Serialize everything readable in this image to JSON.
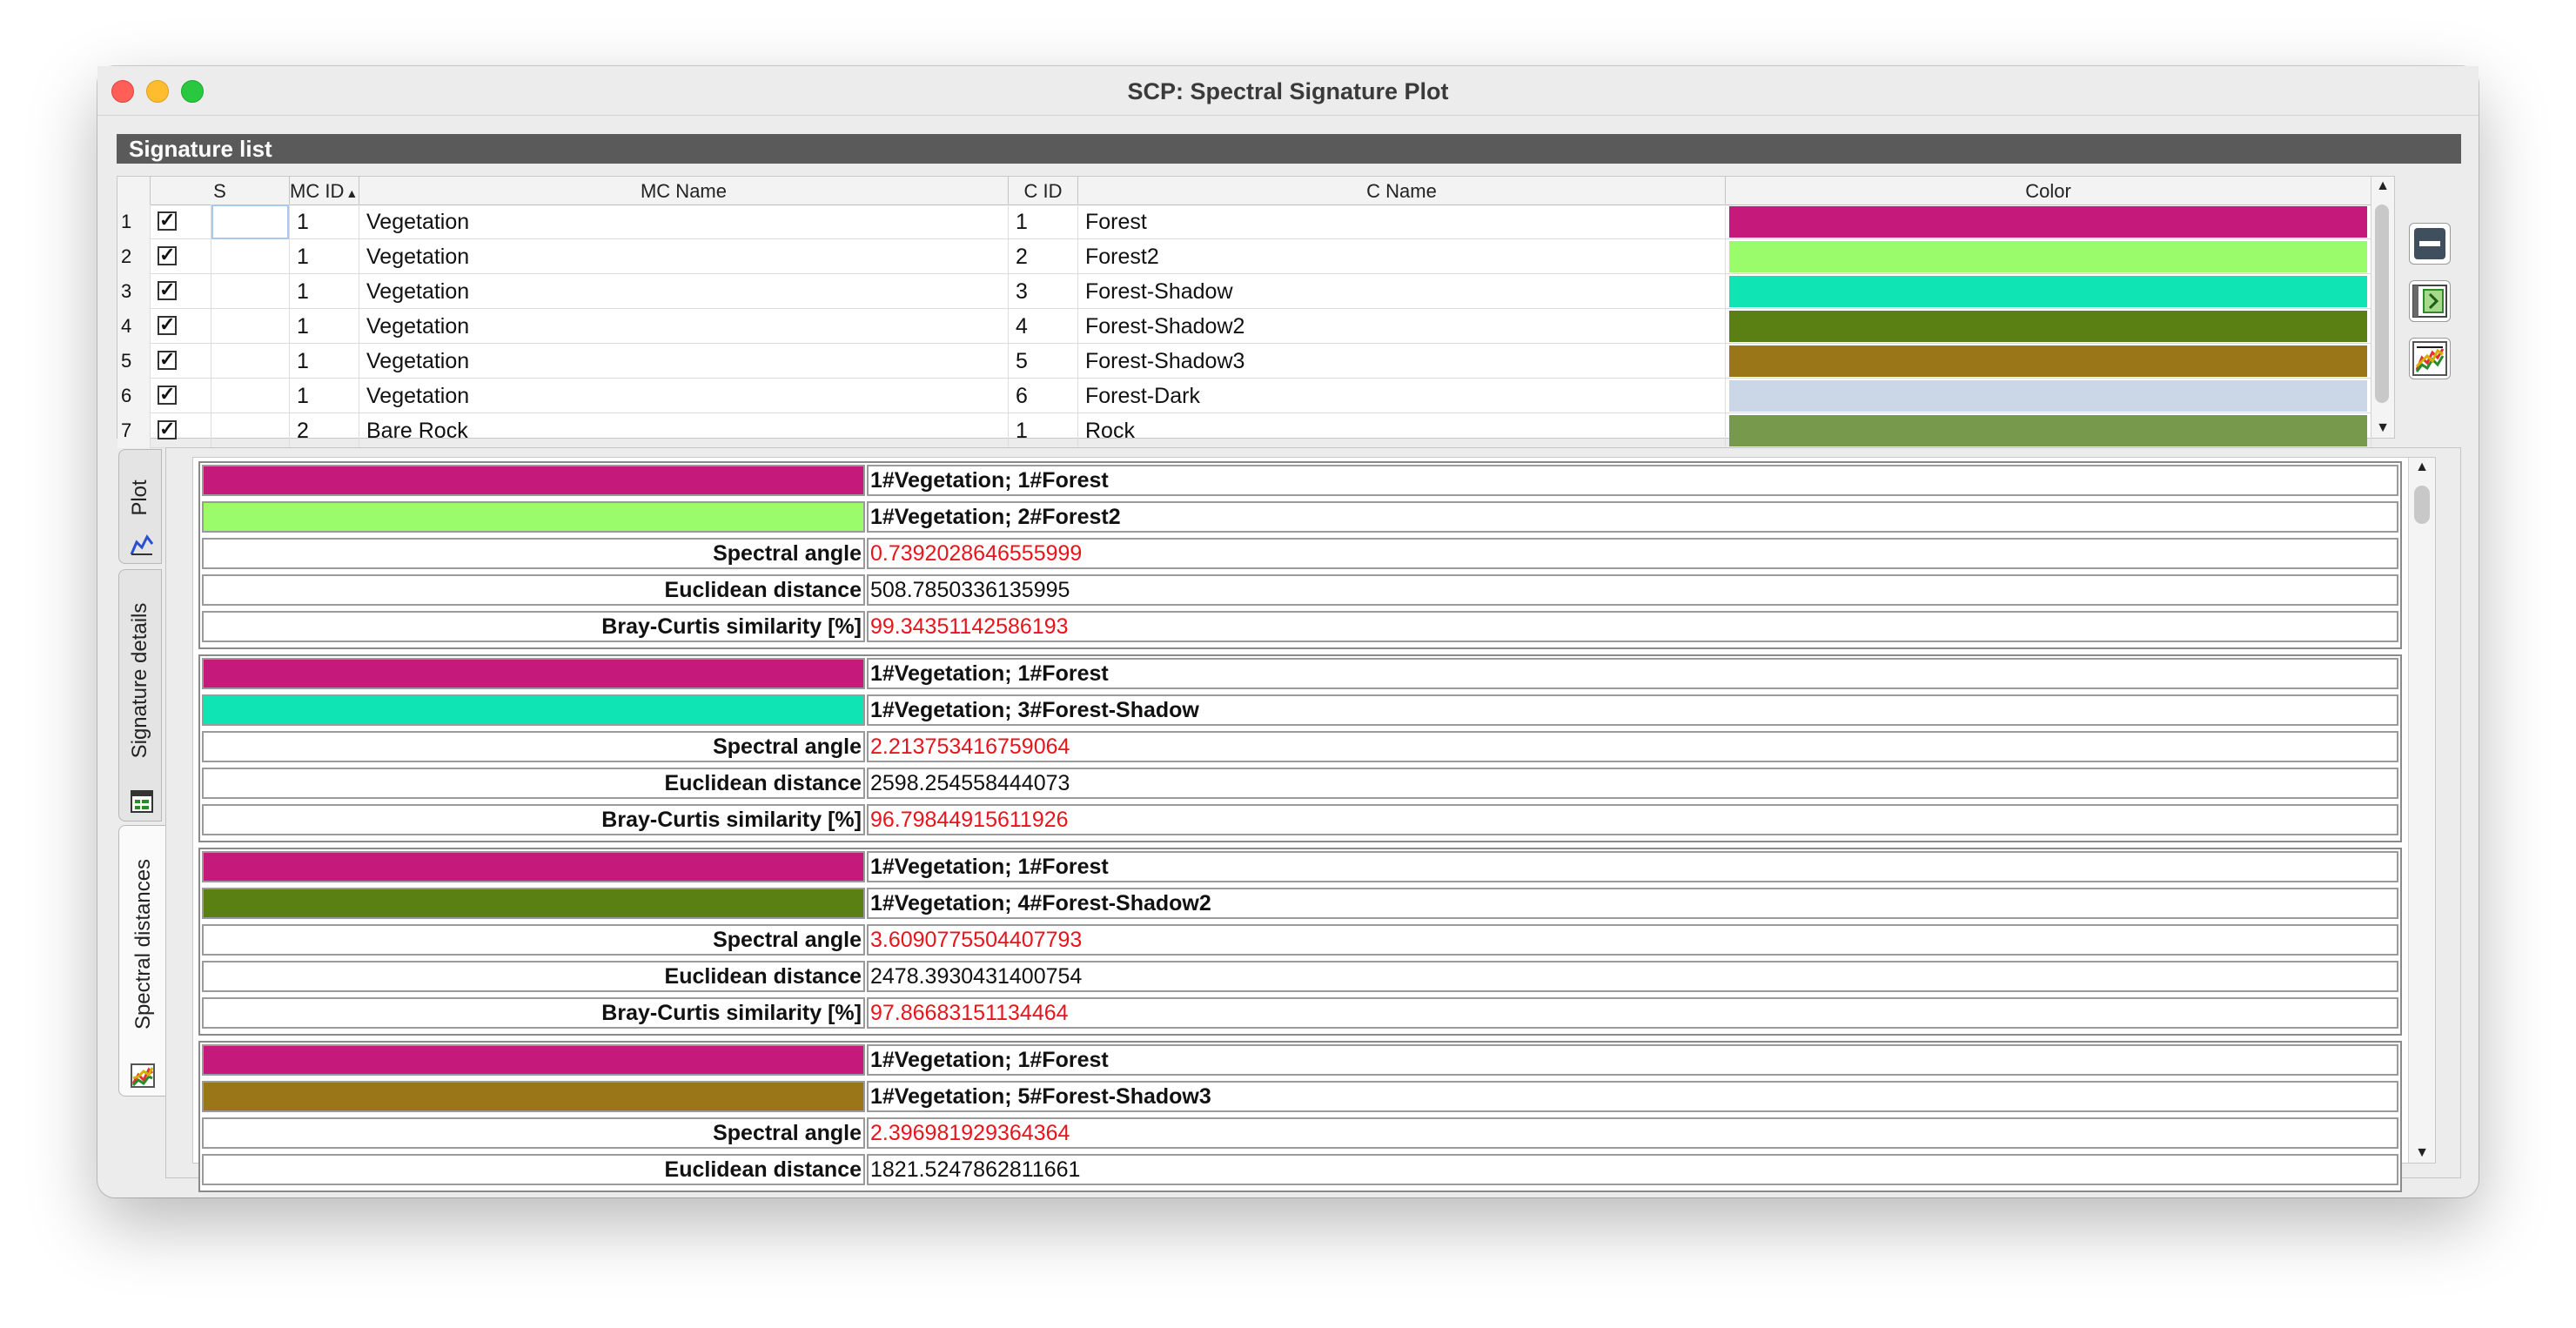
{
  "window": {
    "title": "SCP: Spectral Signature Plot"
  },
  "signature_list": {
    "header": "Signature list",
    "columns": [
      "S",
      "MC ID",
      "MC Name",
      "C ID",
      "C Name",
      "Color"
    ],
    "rows": [
      {
        "num": "1",
        "mc_id": "1",
        "mc_name": "Vegetation",
        "c_id": "1",
        "c_name": "Forest",
        "color": "#c51a7b"
      },
      {
        "num": "2",
        "mc_id": "1",
        "mc_name": "Vegetation",
        "c_id": "2",
        "c_name": "Forest2",
        "color": "#9bfc6b"
      },
      {
        "num": "3",
        "mc_id": "1",
        "mc_name": "Vegetation",
        "c_id": "3",
        "c_name": "Forest-Shadow",
        "color": "#0ee4b4"
      },
      {
        "num": "4",
        "mc_id": "1",
        "mc_name": "Vegetation",
        "c_id": "4",
        "c_name": "Forest-Shadow2",
        "color": "#5a7f12"
      },
      {
        "num": "5",
        "mc_id": "1",
        "mc_name": "Vegetation",
        "c_id": "5",
        "c_name": "Forest-Shadow3",
        "color": "#9a7618"
      },
      {
        "num": "6",
        "mc_id": "1",
        "mc_name": "Vegetation",
        "c_id": "6",
        "c_name": "Forest-Dark",
        "color": "#cbd6e6"
      },
      {
        "num": "7",
        "mc_id": "2",
        "mc_name": "Bare Rock",
        "c_id": "1",
        "c_name": "Rock",
        "color": "#77994b"
      }
    ]
  },
  "tabs": [
    "Plot",
    "Signature details",
    "Spectral distances"
  ],
  "active_tab": "Spectral distances",
  "labels": {
    "spectral_angle": "Spectral angle",
    "euclidean_distance": "Euclidean distance",
    "bray_curtis": "Bray-Curtis similarity [%]"
  },
  "distances": [
    {
      "a_name": "1#Vegetation; 1#Forest",
      "a_color": "#c51a7b",
      "b_name": "1#Vegetation; 2#Forest2",
      "b_color": "#9bfc6b",
      "spectral_angle": "0.7392028646555999",
      "euclidean_distance": "508.7850336135995",
      "bray_curtis": "99.34351142586193"
    },
    {
      "a_name": "1#Vegetation; 1#Forest",
      "a_color": "#c51a7b",
      "b_name": "1#Vegetation; 3#Forest-Shadow",
      "b_color": "#0ee4b4",
      "spectral_angle": "2.213753416759064",
      "euclidean_distance": "2598.254558444073",
      "bray_curtis": "96.79844915611926"
    },
    {
      "a_name": "1#Vegetation; 1#Forest",
      "a_color": "#c51a7b",
      "b_name": "1#Vegetation; 4#Forest-Shadow2",
      "b_color": "#5a7f12",
      "spectral_angle": "3.6090775504407793",
      "euclidean_distance": "2478.3930431400754",
      "bray_curtis": "97.86683151134464"
    },
    {
      "a_name": "1#Vegetation; 1#Forest",
      "a_color": "#c51a7b",
      "b_name": "1#Vegetation; 5#Forest-Shadow3",
      "b_color": "#9a7618",
      "spectral_angle": "2.396981929364364",
      "euclidean_distance": "1821.5247862811661",
      "bray_curtis": ""
    }
  ],
  "colors": {
    "value_red": "#e8141c",
    "list_header_bg": "#5a5a5a"
  },
  "icons": [
    "remove-signature-icon",
    "import-signature-icon",
    "spectral-plot-icon",
    "plot-icon",
    "signature-details-icon",
    "spectral-distances-icon"
  ]
}
